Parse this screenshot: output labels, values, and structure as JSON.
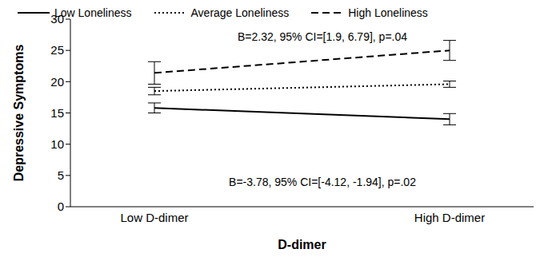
{
  "chart_data": {
    "type": "line",
    "x_label": "D-dimer",
    "y_label": "Depressive Symptoms",
    "categories": [
      "Low D-dimer",
      "High D-dimer"
    ],
    "series": [
      {
        "name": "Low Loneliness",
        "color": "#000000",
        "line_style": "solid",
        "values": [
          15.8,
          14.0
        ],
        "error": [
          0.8,
          0.9
        ]
      },
      {
        "name": "Average Loneliness",
        "color": "#000000",
        "line_style": "dotted",
        "values": [
          18.5,
          19.6
        ],
        "error": [
          0.6,
          0.5
        ]
      },
      {
        "name": "High Loneliness",
        "color": "#000000",
        "line_style": "dashed",
        "values": [
          21.4,
          25.0
        ],
        "error": [
          1.8,
          1.6
        ]
      }
    ],
    "annotations": [
      "B=2.32, 95% CI=[1.9, 6.79], p=.04",
      "B=-3.78, 95% CI=[-4.12, -1.94], p=.02"
    ],
    "ylim": [
      0,
      30
    ],
    "yticks": [
      0,
      5,
      10,
      15,
      20,
      25,
      30
    ],
    "grid": false,
    "legend": "top"
  }
}
